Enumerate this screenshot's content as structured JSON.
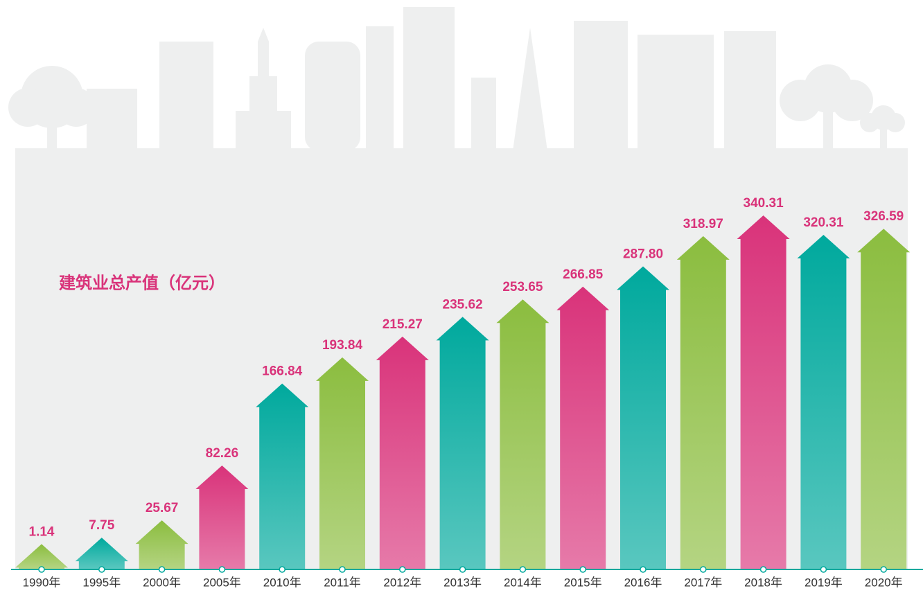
{
  "chart_data": {
    "type": "arrow-bar",
    "title": "建筑业总产值（亿元）",
    "categories": [
      "1990年",
      "1995年",
      "2000年",
      "2005年",
      "2010年",
      "2011年",
      "2012年",
      "2013年",
      "2014年",
      "2015年",
      "2016年",
      "2017年",
      "2018年",
      "2019年",
      "2020年"
    ],
    "values": [
      1.14,
      7.75,
      25.67,
      82.26,
      166.84,
      193.84,
      215.27,
      235.62,
      253.65,
      266.85,
      287.8,
      318.97,
      340.31,
      320.31,
      326.59
    ],
    "value_labels": [
      "1.14",
      "7.75",
      "25.67",
      "82.26",
      "166.84",
      "193.84",
      "215.27",
      "235.62",
      "253.65",
      "266.85",
      "287.80",
      "318.97",
      "340.31",
      "320.31",
      "326.59"
    ],
    "colors": [
      "#8bbd3f",
      "#00a99d",
      "#8bbd3f",
      "#d9337a",
      "#00a99d",
      "#8bbd3f",
      "#d9337a",
      "#00a99d",
      "#8bbd3f",
      "#d9337a",
      "#00a99d",
      "#8bbd3f",
      "#d9337a",
      "#00a99d",
      "#8bbd3f"
    ]
  }
}
